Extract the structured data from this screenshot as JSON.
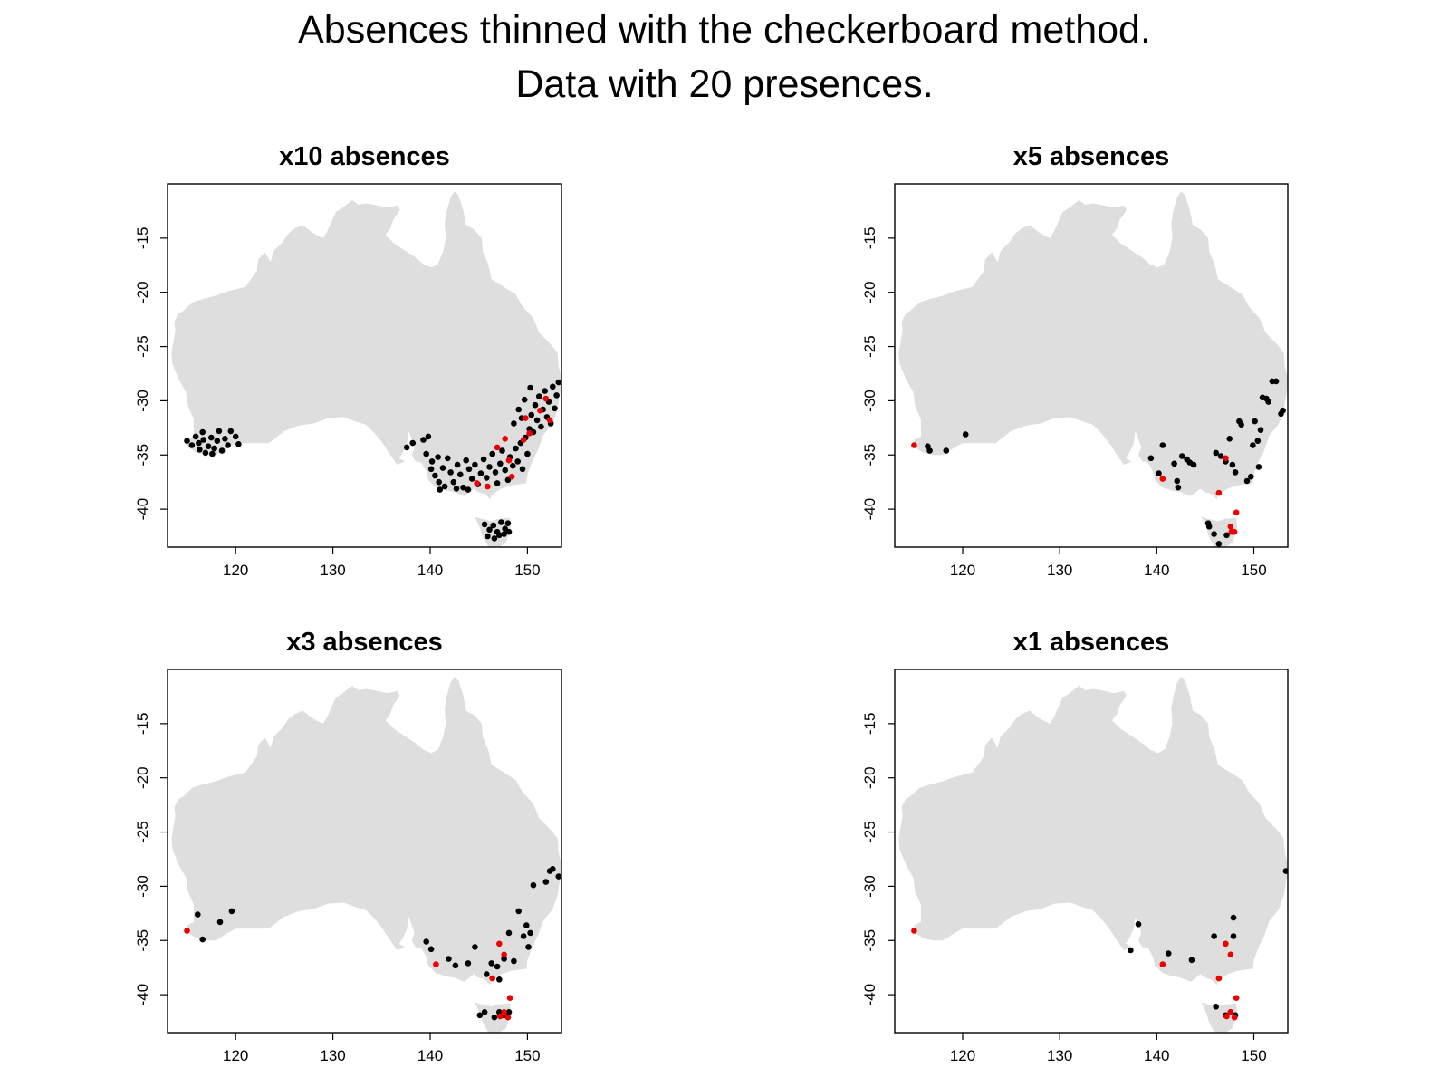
{
  "title_line1": "Absences thinned with the checkerboard method.",
  "title_line2": "Data with 20 presences.",
  "colors": {
    "land": "#dedede",
    "absence": "#000000",
    "presence": "#ee0000",
    "axis": "#000000"
  },
  "chart_data": [
    {
      "type": "scatter",
      "title": "x10 absences",
      "xlim": [
        113,
        153.5
      ],
      "ylim": [
        -43.5,
        -10
      ],
      "xticks": [
        120,
        130,
        140,
        150
      ],
      "yticks": [
        -15,
        -20,
        -25,
        -30,
        -35,
        -40
      ],
      "grid": false,
      "series": [
        {
          "color": "black",
          "points": [
            [
              115,
              -33.7
            ],
            [
              115.5,
              -34.1
            ],
            [
              115.9,
              -33.3
            ],
            [
              116.2,
              -33.9
            ],
            [
              116.3,
              -34.5
            ],
            [
              116.7,
              -33.6
            ],
            [
              116.9,
              -34.8
            ],
            [
              117.2,
              -34.2
            ],
            [
              117.5,
              -33.4
            ],
            [
              117.8,
              -34.4
            ],
            [
              118.1,
              -33.7
            ],
            [
              118.3,
              -32.8
            ],
            [
              118.6,
              -34.6
            ],
            [
              118.9,
              -33.5
            ],
            [
              119.2,
              -34.1
            ],
            [
              119.5,
              -32.8
            ],
            [
              120,
              -33.3
            ],
            [
              120.3,
              -34
            ],
            [
              116.6,
              -32.9
            ],
            [
              117.6,
              -34.9
            ],
            [
              137.6,
              -34.3
            ],
            [
              138.2,
              -33.9
            ],
            [
              139.3,
              -33.6
            ],
            [
              139.8,
              -33.3
            ],
            [
              139.6,
              -34.9
            ],
            [
              140.2,
              -35.6
            ],
            [
              140.8,
              -35.2
            ],
            [
              140.1,
              -36.3
            ],
            [
              140.5,
              -36.9
            ],
            [
              140.9,
              -37.5
            ],
            [
              141.3,
              -36.2
            ],
            [
              141.5,
              -37.9
            ],
            [
              141.8,
              -35.3
            ],
            [
              142.1,
              -36.6
            ],
            [
              142.4,
              -37.5
            ],
            [
              142.8,
              -35.9
            ],
            [
              143.1,
              -36.8
            ],
            [
              143.4,
              -38
            ],
            [
              143.7,
              -35.5
            ],
            [
              144,
              -36.3
            ],
            [
              144.3,
              -37.2
            ],
            [
              144.6,
              -35.9
            ],
            [
              144.9,
              -37.7
            ],
            [
              145.2,
              -36.7
            ],
            [
              145.5,
              -35.4
            ],
            [
              145.8,
              -37.1
            ],
            [
              146.1,
              -36.1
            ],
            [
              146.4,
              -34.9
            ],
            [
              146.7,
              -36.6
            ],
            [
              146.9,
              -37.6
            ],
            [
              147.2,
              -35.8
            ],
            [
              147.4,
              -34.6
            ],
            [
              147.7,
              -36.4
            ],
            [
              148,
              -37.3
            ],
            [
              148.2,
              -35.2
            ],
            [
              148.5,
              -36
            ],
            [
              148.8,
              -34.4
            ],
            [
              149,
              -35.6
            ],
            [
              149.3,
              -33.9
            ],
            [
              149.5,
              -36.3
            ],
            [
              149.8,
              -33.4
            ],
            [
              150,
              -34.9
            ],
            [
              150.2,
              -32.6
            ],
            [
              150.4,
              -31.3
            ],
            [
              150.6,
              -32.9
            ],
            [
              150.8,
              -30.4
            ],
            [
              151,
              -31.8
            ],
            [
              151.2,
              -29.6
            ],
            [
              151.4,
              -32.4
            ],
            [
              151.6,
              -30.8
            ],
            [
              151.8,
              -29.1
            ],
            [
              152,
              -31.5
            ],
            [
              152.2,
              -30.1
            ],
            [
              152.4,
              -32.1
            ],
            [
              152.6,
              -28.7
            ],
            [
              152.8,
              -30.7
            ],
            [
              153,
              -29.5
            ],
            [
              153.2,
              -28.3
            ],
            [
              150.3,
              -28.8
            ],
            [
              149.7,
              -29.9
            ],
            [
              149.1,
              -30.8
            ],
            [
              148.6,
              -32.1
            ],
            [
              149.4,
              -31.6
            ],
            [
              141,
              -38.2
            ],
            [
              143.9,
              -38.2
            ],
            [
              142.7,
              -38.1
            ],
            [
              145.6,
              -41.4
            ],
            [
              146.1,
              -41.9
            ],
            [
              146.5,
              -41.5
            ],
            [
              146.9,
              -42.1
            ],
            [
              147.3,
              -41.2
            ],
            [
              147.7,
              -41.8
            ],
            [
              148,
              -41.3
            ],
            [
              145.9,
              -42.5
            ],
            [
              146.6,
              -42.7
            ],
            [
              147.1,
              -42.4
            ],
            [
              147.6,
              -42.3
            ],
            [
              148.1,
              -42.1
            ]
          ]
        },
        {
          "color": "red",
          "points": [
            [
              144.8,
              -37.6
            ],
            [
              146.9,
              -34.3
            ],
            [
              147.7,
              -33.5
            ],
            [
              148.1,
              -35.5
            ],
            [
              148.4,
              -37
            ],
            [
              149.8,
              -31.6
            ],
            [
              150.2,
              -33
            ],
            [
              151.3,
              -30.9
            ],
            [
              151.9,
              -29.8
            ],
            [
              152.3,
              -31.8
            ],
            [
              145.9,
              -37.9
            ],
            [
              149.6,
              -33.6
            ]
          ]
        }
      ]
    },
    {
      "type": "scatter",
      "title": "x5 absences",
      "xlim": [
        113,
        153.5
      ],
      "ylim": [
        -43.5,
        -10
      ],
      "xticks": [
        120,
        130,
        140,
        150
      ],
      "yticks": [
        -15,
        -20,
        -25,
        -30,
        -35,
        -40
      ],
      "grid": false,
      "series": [
        {
          "color": "black",
          "points": [
            [
              116.4,
              -34.2
            ],
            [
              116.6,
              -34.6
            ],
            [
              118.3,
              -34.6
            ],
            [
              120.3,
              -33.1
            ],
            [
              139.4,
              -35.3
            ],
            [
              140.6,
              -34.1
            ],
            [
              141.8,
              -35.8
            ],
            [
              142.1,
              -37.4
            ],
            [
              142.2,
              -38
            ],
            [
              142.6,
              -35.1
            ],
            [
              143.1,
              -35.4
            ],
            [
              143.4,
              -35.7
            ],
            [
              143.8,
              -35.9
            ],
            [
              146.1,
              -34.8
            ],
            [
              146.6,
              -35.1
            ],
            [
              147.1,
              -35.6
            ],
            [
              147.5,
              -33.5
            ],
            [
              147.8,
              -35.9
            ],
            [
              148.1,
              -36.6
            ],
            [
              148.5,
              -31.9
            ],
            [
              148.7,
              -32.2
            ],
            [
              149.3,
              -37.4
            ],
            [
              149.7,
              -37
            ],
            [
              149.9,
              -34.1
            ],
            [
              150.1,
              -31.9
            ],
            [
              150.4,
              -33.7
            ],
            [
              150.5,
              -36.1
            ],
            [
              150.7,
              -32.7
            ],
            [
              150.9,
              -29.7
            ],
            [
              151.3,
              -29.8
            ],
            [
              151.5,
              -30.1
            ],
            [
              151.9,
              -28.2
            ],
            [
              152.3,
              -28.2
            ],
            [
              152.8,
              -31.2
            ],
            [
              153,
              -30.9
            ],
            [
              140.2,
              -36.7
            ],
            [
              145.3,
              -41.3
            ],
            [
              145.4,
              -41.6
            ],
            [
              145.9,
              -42.3
            ],
            [
              146.4,
              -43.2
            ],
            [
              147.2,
              -42.4
            ]
          ]
        },
        {
          "color": "red",
          "points": [
            [
              115,
              -34.1
            ],
            [
              140.6,
              -37.2
            ],
            [
              146.4,
              -38.5
            ],
            [
              147.1,
              -35.3
            ],
            [
              147.6,
              -41.6
            ],
            [
              148,
              -42.1
            ],
            [
              148.2,
              -40.3
            ],
            [
              147.7,
              -42.1
            ]
          ]
        }
      ]
    },
    {
      "type": "scatter",
      "title": "x3 absences",
      "xlim": [
        113,
        153.5
      ],
      "ylim": [
        -43.5,
        -10
      ],
      "xticks": [
        120,
        130,
        140,
        150
      ],
      "yticks": [
        -15,
        -20,
        -25,
        -30,
        -35,
        -40
      ],
      "grid": false,
      "series": [
        {
          "color": "black",
          "points": [
            [
              116.1,
              -32.6
            ],
            [
              116.6,
              -34.9
            ],
            [
              118.4,
              -33.3
            ],
            [
              119.6,
              -32.3
            ],
            [
              139.6,
              -35.1
            ],
            [
              140.1,
              -35.8
            ],
            [
              141.9,
              -36.7
            ],
            [
              142.6,
              -37.3
            ],
            [
              143.9,
              -37.1
            ],
            [
              144.6,
              -35.6
            ],
            [
              145.8,
              -38.1
            ],
            [
              146.3,
              -37.1
            ],
            [
              146.9,
              -37.4
            ],
            [
              147.1,
              -38.6
            ],
            [
              147.6,
              -36.7
            ],
            [
              148.1,
              -34.3
            ],
            [
              148.6,
              -36.9
            ],
            [
              149.1,
              -32.3
            ],
            [
              149.6,
              -34.6
            ],
            [
              149.9,
              -33.6
            ],
            [
              150.3,
              -34.3
            ],
            [
              150.6,
              -29.9
            ],
            [
              150.1,
              -35.6
            ],
            [
              151.9,
              -29.6
            ],
            [
              152.3,
              -28.6
            ],
            [
              152.6,
              -28.4
            ],
            [
              153.2,
              -29.1
            ],
            [
              145.1,
              -41.9
            ],
            [
              145.6,
              -41.6
            ],
            [
              146.6,
              -42.1
            ],
            [
              147.1,
              -41.6
            ],
            [
              147.6,
              -41.9
            ],
            [
              148.1,
              -41.6
            ]
          ]
        },
        {
          "color": "red",
          "points": [
            [
              115,
              -34.1
            ],
            [
              140.6,
              -37.2
            ],
            [
              146.4,
              -38.5
            ],
            [
              147.1,
              -35.3
            ],
            [
              147.6,
              -36.3
            ],
            [
              147.6,
              -41.6
            ],
            [
              148,
              -42.1
            ],
            [
              148.2,
              -40.3
            ],
            [
              147.2,
              -42
            ]
          ]
        }
      ]
    },
    {
      "type": "scatter",
      "title": "x1 absences",
      "xlim": [
        113,
        153.5
      ],
      "ylim": [
        -43.5,
        -10
      ],
      "xticks": [
        120,
        130,
        140,
        150
      ],
      "yticks": [
        -15,
        -20,
        -25,
        -30,
        -35,
        -40
      ],
      "grid": false,
      "series": [
        {
          "color": "black",
          "points": [
            [
              137.3,
              -35.9
            ],
            [
              138.1,
              -33.5
            ],
            [
              141.2,
              -36.2
            ],
            [
              143.6,
              -36.8
            ],
            [
              145.9,
              -34.6
            ],
            [
              147.9,
              -32.9
            ],
            [
              147.9,
              -34.6
            ],
            [
              153.3,
              -28.6
            ],
            [
              146.1,
              -41.1
            ],
            [
              147.1,
              -41.9
            ],
            [
              147.6,
              -41.6
            ],
            [
              148.1,
              -41.9
            ]
          ]
        },
        {
          "color": "red",
          "points": [
            [
              115,
              -34.1
            ],
            [
              140.6,
              -37.2
            ],
            [
              146.4,
              -38.5
            ],
            [
              147.1,
              -35.3
            ],
            [
              147.6,
              -36.3
            ],
            [
              147.6,
              -41.6
            ],
            [
              148,
              -42.1
            ],
            [
              148.2,
              -40.3
            ],
            [
              147.2,
              -42
            ]
          ]
        }
      ]
    }
  ]
}
